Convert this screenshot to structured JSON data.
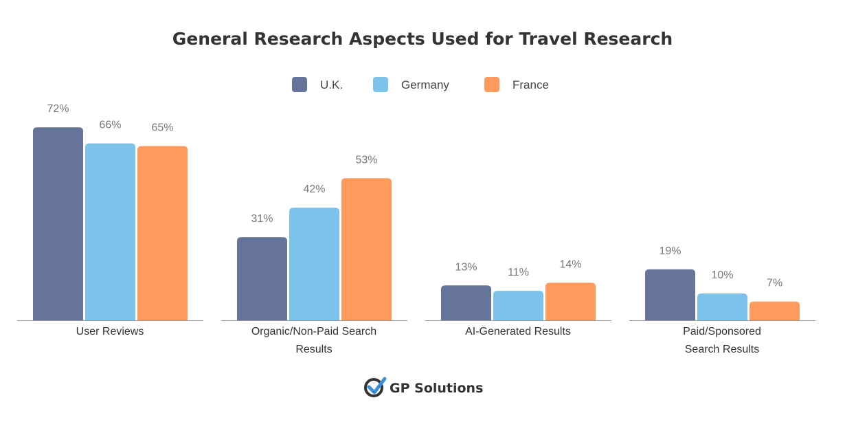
{
  "chart_data": {
    "type": "bar",
    "title": "General Research Aspects Used for Travel Research",
    "categories": [
      [
        "User Reviews"
      ],
      [
        "Organic/Non-Paid Search",
        "Results"
      ],
      [
        "AI-Generated Results"
      ],
      [
        "Paid/Sponsored",
        "Search Results"
      ]
    ],
    "series": [
      {
        "name": "U.K.",
        "color": "#657498",
        "values": [
          72,
          31,
          13,
          19
        ]
      },
      {
        "name": "Germany",
        "color": "#7BC3EA",
        "values": [
          66,
          42,
          11,
          10
        ]
      },
      {
        "name": "France",
        "color": "#FD9A5C",
        "values": [
          65,
          53,
          14,
          7
        ]
      }
    ],
    "value_suffix": "%",
    "ylim": [
      0,
      75
    ],
    "legend": "top-center",
    "grid": false
  },
  "footer": {
    "logo_text": "GP Solutions"
  }
}
